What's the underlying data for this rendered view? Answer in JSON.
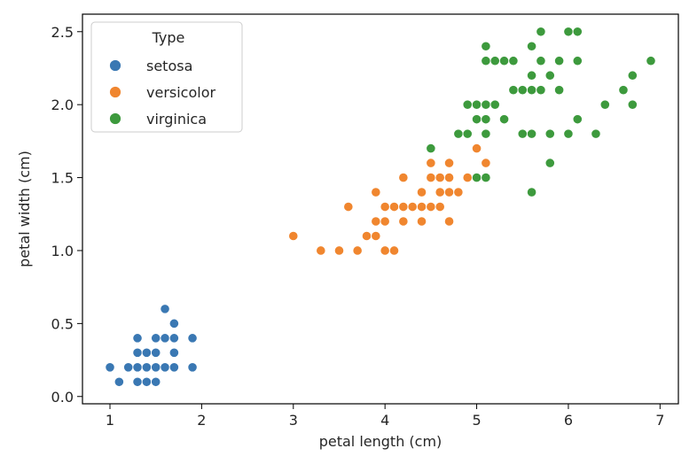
{
  "chart_data": {
    "type": "scatter",
    "xlabel": "petal length (cm)",
    "ylabel": "petal width (cm)",
    "xlim": [
      0.7,
      7.2
    ],
    "ylim": [
      -0.05,
      2.62
    ],
    "xticks": [
      1,
      2,
      3,
      4,
      5,
      6,
      7
    ],
    "yticks": [
      0.0,
      0.5,
      1.0,
      1.5,
      2.0,
      2.5
    ],
    "xtick_labels": [
      "1",
      "2",
      "3",
      "4",
      "5",
      "6",
      "7"
    ],
    "ytick_labels": [
      "0.0",
      "0.5",
      "1.0",
      "1.5",
      "2.0",
      "2.5"
    ],
    "grid": false,
    "legend": {
      "title": "Type",
      "placement": "top-left"
    },
    "series": [
      {
        "name": "setosa",
        "color": "#3a78b3",
        "points": [
          [
            1.0,
            0.2
          ],
          [
            1.1,
            0.1
          ],
          [
            1.2,
            0.2
          ],
          [
            1.3,
            0.2
          ],
          [
            1.4,
            0.2
          ],
          [
            1.5,
            0.2
          ],
          [
            1.6,
            0.2
          ],
          [
            1.7,
            0.2
          ],
          [
            1.9,
            0.2
          ],
          [
            1.3,
            0.1
          ],
          [
            1.4,
            0.1
          ],
          [
            1.5,
            0.1
          ],
          [
            1.3,
            0.3
          ],
          [
            1.4,
            0.3
          ],
          [
            1.5,
            0.3
          ],
          [
            1.7,
            0.3
          ],
          [
            1.3,
            0.4
          ],
          [
            1.5,
            0.4
          ],
          [
            1.6,
            0.4
          ],
          [
            1.7,
            0.4
          ],
          [
            1.9,
            0.4
          ],
          [
            1.7,
            0.5
          ],
          [
            1.6,
            0.6
          ]
        ]
      },
      {
        "name": "versicolor",
        "color": "#f0862f",
        "points": [
          [
            3.0,
            1.1
          ],
          [
            3.3,
            1.0
          ],
          [
            3.5,
            1.0
          ],
          [
            3.7,
            1.0
          ],
          [
            4.0,
            1.0
          ],
          [
            4.1,
            1.0
          ],
          [
            3.8,
            1.1
          ],
          [
            3.9,
            1.1
          ],
          [
            3.9,
            1.2
          ],
          [
            4.0,
            1.2
          ],
          [
            4.2,
            1.2
          ],
          [
            4.4,
            1.2
          ],
          [
            4.7,
            1.2
          ],
          [
            3.6,
            1.3
          ],
          [
            4.0,
            1.3
          ],
          [
            4.1,
            1.3
          ],
          [
            4.2,
            1.3
          ],
          [
            4.3,
            1.3
          ],
          [
            4.4,
            1.3
          ],
          [
            4.5,
            1.3
          ],
          [
            4.6,
            1.3
          ],
          [
            3.9,
            1.4
          ],
          [
            4.4,
            1.4
          ],
          [
            4.6,
            1.4
          ],
          [
            4.7,
            1.4
          ],
          [
            4.8,
            1.4
          ],
          [
            4.2,
            1.5
          ],
          [
            4.5,
            1.5
          ],
          [
            4.6,
            1.5
          ],
          [
            4.7,
            1.5
          ],
          [
            4.9,
            1.5
          ],
          [
            4.5,
            1.6
          ],
          [
            4.7,
            1.6
          ],
          [
            5.1,
            1.6
          ],
          [
            4.8,
            1.8
          ],
          [
            5.0,
            1.7
          ]
        ]
      },
      {
        "name": "virginica",
        "color": "#3d9a3d",
        "points": [
          [
            4.5,
            1.7
          ],
          [
            5.0,
            1.5
          ],
          [
            5.1,
            1.5
          ],
          [
            5.6,
            1.4
          ],
          [
            5.8,
            1.6
          ],
          [
            4.8,
            1.8
          ],
          [
            4.9,
            1.8
          ],
          [
            5.1,
            1.8
          ],
          [
            5.5,
            1.8
          ],
          [
            5.6,
            1.8
          ],
          [
            5.8,
            1.8
          ],
          [
            6.0,
            1.8
          ],
          [
            6.3,
            1.8
          ],
          [
            5.0,
            1.9
          ],
          [
            5.1,
            1.9
          ],
          [
            5.3,
            1.9
          ],
          [
            6.1,
            1.9
          ],
          [
            4.9,
            2.0
          ],
          [
            5.0,
            2.0
          ],
          [
            5.1,
            2.0
          ],
          [
            5.2,
            2.0
          ],
          [
            6.4,
            2.0
          ],
          [
            6.7,
            2.0
          ],
          [
            5.4,
            2.1
          ],
          [
            5.5,
            2.1
          ],
          [
            5.6,
            2.1
          ],
          [
            5.7,
            2.1
          ],
          [
            5.9,
            2.1
          ],
          [
            6.6,
            2.1
          ],
          [
            5.6,
            2.2
          ],
          [
            5.8,
            2.2
          ],
          [
            6.7,
            2.2
          ],
          [
            5.1,
            2.3
          ],
          [
            5.2,
            2.3
          ],
          [
            5.3,
            2.3
          ],
          [
            5.4,
            2.3
          ],
          [
            5.7,
            2.3
          ],
          [
            5.9,
            2.3
          ],
          [
            6.1,
            2.3
          ],
          [
            6.9,
            2.3
          ],
          [
            5.1,
            2.4
          ],
          [
            5.6,
            2.4
          ],
          [
            5.7,
            2.5
          ],
          [
            6.0,
            2.5
          ],
          [
            6.1,
            2.5
          ]
        ]
      }
    ]
  }
}
